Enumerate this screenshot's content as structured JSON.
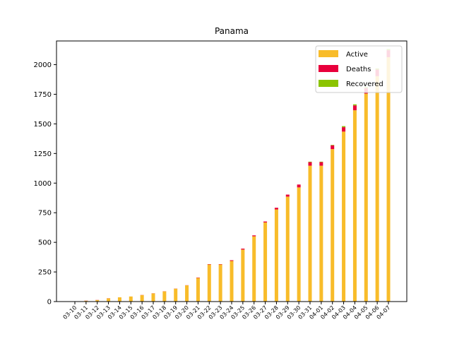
{
  "chart_data": {
    "type": "bar",
    "stacked": true,
    "title": "Panama",
    "xlabel": "",
    "ylabel": "",
    "ylim": [
      0,
      2200
    ],
    "yticks": [
      0,
      250,
      500,
      750,
      1000,
      1250,
      1500,
      1750,
      2000
    ],
    "grid": false,
    "legend_position": "top-right",
    "categories": [
      "03-10",
      "03-11",
      "03-12",
      "03-13",
      "03-14",
      "03-15",
      "03-16",
      "03-17",
      "03-18",
      "03-19",
      "03-20",
      "03-21",
      "03-22",
      "03-23",
      "03-24",
      "03-25",
      "03-26",
      "03-27",
      "03-28",
      "03-29",
      "03-30",
      "03-31",
      "04-01",
      "04-02",
      "04-03",
      "04-04",
      "04-05",
      "04-06",
      "04-07"
    ],
    "series": [
      {
        "name": "Active",
        "color": "#f8bc2a",
        "values": [
          1,
          7,
          13,
          27,
          36,
          43,
          55,
          69,
          86,
          109,
          137,
          200,
          313,
          313,
          343,
          439,
          551,
          668,
          778,
          886,
          964,
          1147,
          1147,
          1287,
          1435,
          1615,
          1756,
          1903,
          2063
        ]
      },
      {
        "name": "Deaths",
        "color": "#e8003c",
        "values": [
          0,
          1,
          1,
          1,
          0,
          0,
          1,
          1,
          1,
          1,
          1,
          3,
          3,
          3,
          6,
          8,
          8,
          8,
          14,
          17,
          24,
          30,
          30,
          32,
          37,
          41,
          46,
          55,
          59
        ]
      },
      {
        "name": "Recovered",
        "color": "#8bc400",
        "values": [
          0,
          0,
          0,
          0,
          0,
          0,
          0,
          0,
          0,
          0,
          0,
          0,
          0,
          0,
          0,
          0,
          0,
          0,
          0,
          0,
          0,
          4,
          4,
          4,
          9,
          9,
          9,
          10,
          10
        ]
      }
    ]
  }
}
